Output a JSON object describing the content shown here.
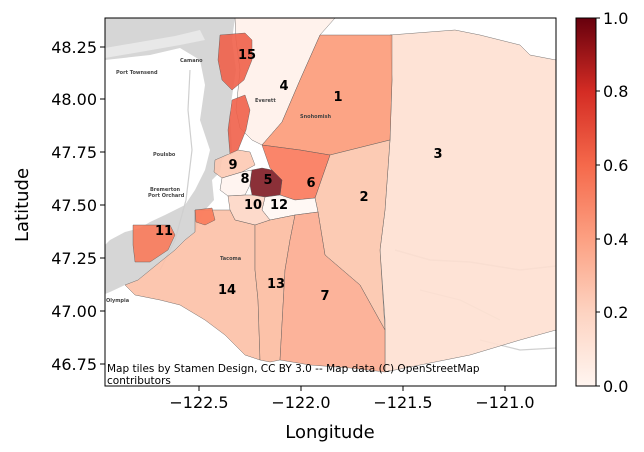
{
  "chart_data": {
    "type": "choropleth",
    "xlabel": "Longitude",
    "ylabel": "Latitude",
    "x_ticks": [
      "−122.5",
      "−122.0",
      "−121.5",
      "−121.0"
    ],
    "y_ticks": [
      "48.25",
      "48.00",
      "47.75",
      "47.50",
      "47.25",
      "47.00",
      "46.75"
    ],
    "xlim": [
      -122.95,
      -120.8
    ],
    "ylim": [
      46.67,
      48.38
    ],
    "colorbar": {
      "ticks": [
        "0.0",
        "0.2",
        "0.4",
        "0.6",
        "0.8",
        "1.0"
      ],
      "range": [
        0,
        1
      ],
      "colormap": "Reds"
    },
    "attribution": [
      "Map tiles by Stamen Design, CC BY 3.0 -- Map data (C) OpenStreetMap",
      "contributors"
    ],
    "regions": [
      {
        "id": "1",
        "value": 0.42
      },
      {
        "id": "2",
        "value": 0.22
      },
      {
        "id": "3",
        "value": 0.12
      },
      {
        "id": "4",
        "value": 0.04
      },
      {
        "id": "5",
        "value": 1.0
      },
      {
        "id": "6",
        "value": 0.55
      },
      {
        "id": "7",
        "value": 0.33
      },
      {
        "id": "8",
        "value": 0.03
      },
      {
        "id": "9",
        "value": 0.2
      },
      {
        "id": "10",
        "value": 0.15
      },
      {
        "id": "11",
        "value": 0.48
      },
      {
        "id": "12",
        "value": 0.02
      },
      {
        "id": "13",
        "value": 0.24
      },
      {
        "id": "14",
        "value": 0.24
      },
      {
        "id": "15",
        "value": 0.58
      }
    ],
    "place_names": [
      "Camano",
      "Port Townsend",
      "Poulsbo",
      "Bremerton",
      "Port Orchard",
      "Tacoma",
      "Olympia",
      "Everett",
      "Snohomish"
    ]
  }
}
